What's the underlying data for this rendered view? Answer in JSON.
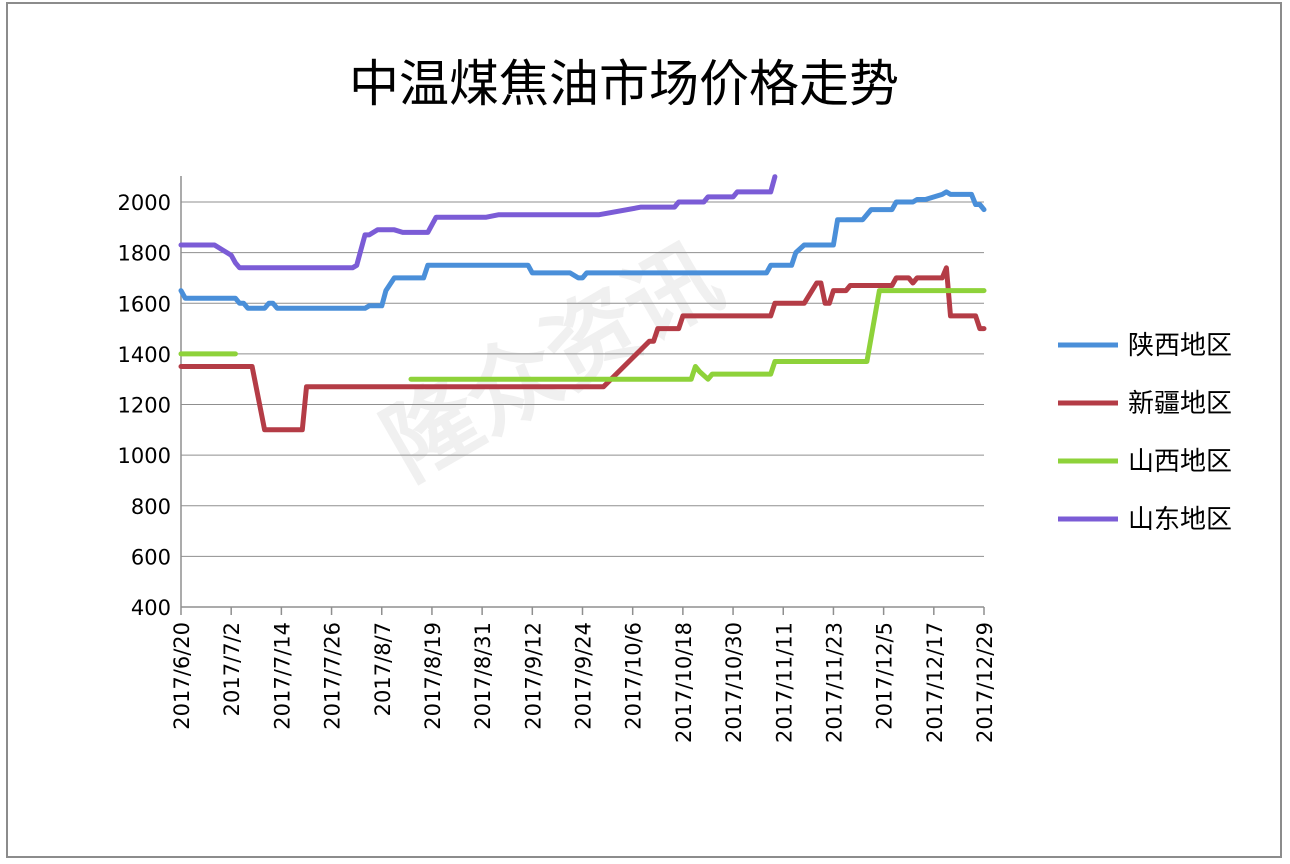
{
  "chart_data": {
    "type": "line",
    "title": "中温煤焦油市场价格走势",
    "xlabel": "",
    "ylabel": "",
    "ylim": [
      400,
      2100
    ],
    "yticks": [
      400,
      600,
      800,
      1000,
      1200,
      1400,
      1600,
      1800,
      2000
    ],
    "x_range": [
      "2017/6/20",
      "2017/12/29"
    ],
    "x_tick_labels": [
      "2017/6/20",
      "2017/7/2",
      "2017/7/14",
      "2017/7/26",
      "2017/8/7",
      "2017/8/19",
      "2017/8/31",
      "2017/9/12",
      "2017/9/24",
      "2017/10/6",
      "2017/10/18",
      "2017/10/30",
      "2017/11/11",
      "2017/11/23",
      "2017/12/5",
      "2017/12/17",
      "2017/12/29"
    ],
    "grid": "horizontal",
    "legend_position": "right",
    "watermark": "隆众资讯",
    "series": [
      {
        "name": "陕西地区",
        "color": "#4a8fd9",
        "points": [
          [
            "2017/6/20",
            1650
          ],
          [
            "2017/6/21",
            1620
          ],
          [
            "2017/7/3",
            1620
          ],
          [
            "2017/7/4",
            1600
          ],
          [
            "2017/7/5",
            1600
          ],
          [
            "2017/7/6",
            1580
          ],
          [
            "2017/7/10",
            1580
          ],
          [
            "2017/7/11",
            1600
          ],
          [
            "2017/7/12",
            1600
          ],
          [
            "2017/7/13",
            1580
          ],
          [
            "2017/8/3",
            1580
          ],
          [
            "2017/8/4",
            1590
          ],
          [
            "2017/8/7",
            1590
          ],
          [
            "2017/8/8",
            1650
          ],
          [
            "2017/8/10",
            1700
          ],
          [
            "2017/8/17",
            1700
          ],
          [
            "2017/8/18",
            1750
          ],
          [
            "2017/9/11",
            1750
          ],
          [
            "2017/9/12",
            1720
          ],
          [
            "2017/9/21",
            1720
          ],
          [
            "2017/9/23",
            1700
          ],
          [
            "2017/9/24",
            1700
          ],
          [
            "2017/9/25",
            1720
          ],
          [
            "2017/11/7",
            1720
          ],
          [
            "2017/11/8",
            1750
          ],
          [
            "2017/11/13",
            1750
          ],
          [
            "2017/11/14",
            1800
          ],
          [
            "2017/11/16",
            1830
          ],
          [
            "2017/11/23",
            1830
          ],
          [
            "2017/11/24",
            1930
          ],
          [
            "2017/11/30",
            1930
          ],
          [
            "2017/12/2",
            1970
          ],
          [
            "2017/12/7",
            1970
          ],
          [
            "2017/12/8",
            2000
          ],
          [
            "2017/12/12",
            2000
          ],
          [
            "2017/12/13",
            2010
          ],
          [
            "2017/12/15",
            2010
          ],
          [
            "2017/12/19",
            2030
          ],
          [
            "2017/12/20",
            2040
          ],
          [
            "2017/12/21",
            2030
          ],
          [
            "2017/12/26",
            2030
          ],
          [
            "2017/12/27",
            1990
          ],
          [
            "2017/12/28",
            1990
          ],
          [
            "2017/12/29",
            1970
          ]
        ]
      },
      {
        "name": "新疆地区",
        "color": "#b43c46",
        "points": [
          [
            "2017/6/20",
            1350
          ],
          [
            "2017/7/7",
            1350
          ],
          [
            "2017/7/10",
            1100
          ],
          [
            "2017/7/19",
            1100
          ],
          [
            "2017/7/20",
            1270
          ],
          [
            "2017/9/29",
            1270
          ],
          [
            "2017/10/10",
            1450
          ],
          [
            "2017/10/11",
            1450
          ],
          [
            "2017/10/12",
            1500
          ],
          [
            "2017/10/17",
            1500
          ],
          [
            "2017/10/18",
            1550
          ],
          [
            "2017/11/8",
            1550
          ],
          [
            "2017/11/9",
            1600
          ],
          [
            "2017/11/16",
            1600
          ],
          [
            "2017/11/19",
            1680
          ],
          [
            "2017/11/20",
            1680
          ],
          [
            "2017/11/21",
            1600
          ],
          [
            "2017/11/22",
            1600
          ],
          [
            "2017/11/23",
            1650
          ],
          [
            "2017/11/26",
            1650
          ],
          [
            "2017/11/27",
            1670
          ],
          [
            "2017/12/7",
            1670
          ],
          [
            "2017/12/8",
            1700
          ],
          [
            "2017/12/11",
            1700
          ],
          [
            "2017/12/12",
            1680
          ],
          [
            "2017/12/13",
            1700
          ],
          [
            "2017/12/19",
            1700
          ],
          [
            "2017/12/20",
            1740
          ],
          [
            "2017/12/21",
            1550
          ],
          [
            "2017/12/27",
            1550
          ],
          [
            "2017/12/28",
            1500
          ],
          [
            "2017/12/29",
            1500
          ]
        ]
      },
      {
        "name": "山西地区",
        "color": "#8ed23a",
        "segments": [
          [
            [
              "2017/6/20",
              1400
            ],
            [
              "2017/7/3",
              1400
            ]
          ],
          [
            [
              "2017/8/14",
              1300
            ],
            [
              "2017/10/20",
              1300
            ],
            [
              "2017/10/21",
              1350
            ],
            [
              "2017/10/22",
              1330
            ],
            [
              "2017/10/24",
              1300
            ],
            [
              "2017/10/25",
              1320
            ],
            [
              "2017/11/8",
              1320
            ],
            [
              "2017/11/9",
              1370
            ],
            [
              "2017/12/1",
              1370
            ],
            [
              "2017/12/4",
              1650
            ],
            [
              "2017/12/29",
              1650
            ]
          ]
        ]
      },
      {
        "name": "山东地区",
        "color": "#7b5cd6",
        "points": [
          [
            "2017/6/20",
            1830
          ],
          [
            "2017/6/28",
            1830
          ],
          [
            "2017/6/30",
            1810
          ],
          [
            "2017/7/2",
            1790
          ],
          [
            "2017/7/3",
            1760
          ],
          [
            "2017/7/4",
            1740
          ],
          [
            "2017/7/31",
            1740
          ],
          [
            "2017/8/1",
            1750
          ],
          [
            "2017/8/3",
            1870
          ],
          [
            "2017/8/4",
            1870
          ],
          [
            "2017/8/6",
            1890
          ],
          [
            "2017/8/10",
            1890
          ],
          [
            "2017/8/12",
            1880
          ],
          [
            "2017/8/18",
            1880
          ],
          [
            "2017/8/20",
            1940
          ],
          [
            "2017/9/1",
            1940
          ],
          [
            "2017/9/4",
            1950
          ],
          [
            "2017/9/28",
            1950
          ],
          [
            "2017/10/8",
            1980
          ],
          [
            "2017/10/16",
            1980
          ],
          [
            "2017/10/17",
            2000
          ],
          [
            "2017/10/23",
            2000
          ],
          [
            "2017/10/24",
            2020
          ],
          [
            "2017/10/30",
            2020
          ],
          [
            "2017/10/31",
            2040
          ],
          [
            "2017/11/8",
            2040
          ],
          [
            "2017/11/9",
            2100
          ]
        ]
      }
    ]
  }
}
